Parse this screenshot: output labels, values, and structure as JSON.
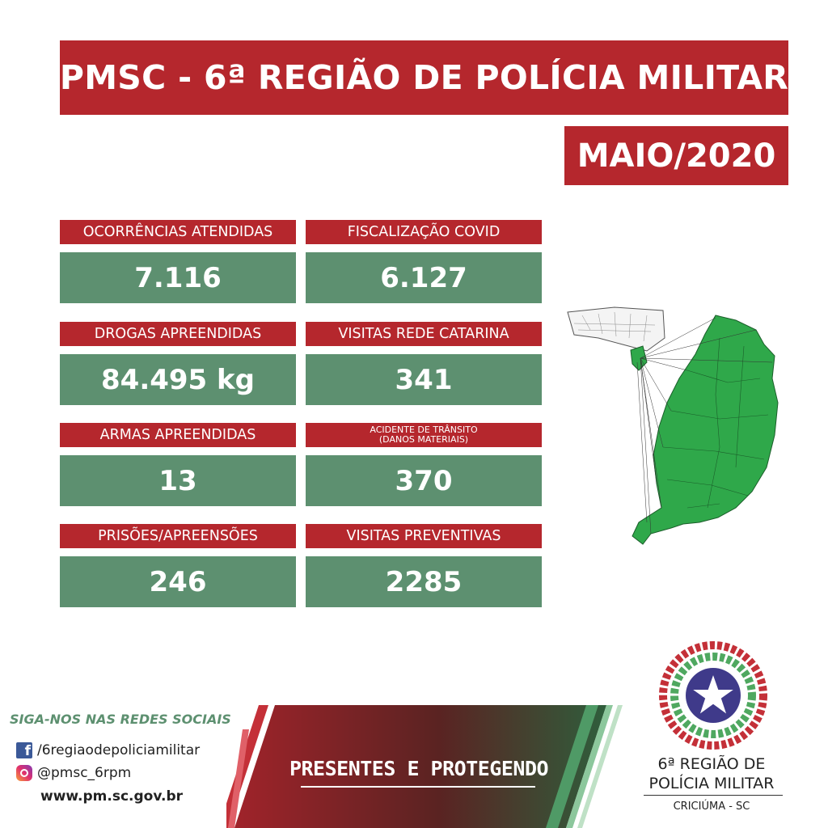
{
  "header": {
    "title": "PMSC - 6ª REGIÃO DE POLÍCIA MILITAR",
    "period": "MAIO/2020"
  },
  "stats": [
    {
      "label": "OCORRÊNCIAS ATENDIDAS",
      "value": "7.116"
    },
    {
      "label": "FISCALIZAÇÃO COVID",
      "value": "6.127"
    },
    {
      "label": "DROGAS APREENDIDAS",
      "value": "84.495 kg"
    },
    {
      "label": "VISITAS REDE CATARINA",
      "value": "341"
    },
    {
      "label": "ARMAS APREENDIDAS",
      "value": "13"
    },
    {
      "label_line1": "ACIDENTE DE TRÂNSITO",
      "label_line2": "(DANOS MATERIAIS)",
      "value": "370"
    },
    {
      "label": "PRISÕES/APREENSÕES",
      "value": "246"
    },
    {
      "label": "VISITAS PREVENTIVAS",
      "value": "2285"
    }
  ],
  "social": {
    "heading": "SIGA-NOS NAS REDES SOCIAIS",
    "facebook": "/6regiaodepoliciamilitar",
    "instagram": "@pmsc_6rpm",
    "website": "www.pm.sc.gov.br"
  },
  "slogan": "PRESENTES E PROTEGENDO",
  "logo": {
    "line1": "6ª REGIÃO DE",
    "line2": "POLÍCIA MILITAR",
    "city": "CRICIÚMA - SC"
  },
  "colors": {
    "red": "#b5272d",
    "green": "#5d9070",
    "map_green": "#2fa84a"
  },
  "icons": [
    "facebook-icon",
    "instagram-icon",
    "map-icon",
    "logo-star-icon"
  ]
}
